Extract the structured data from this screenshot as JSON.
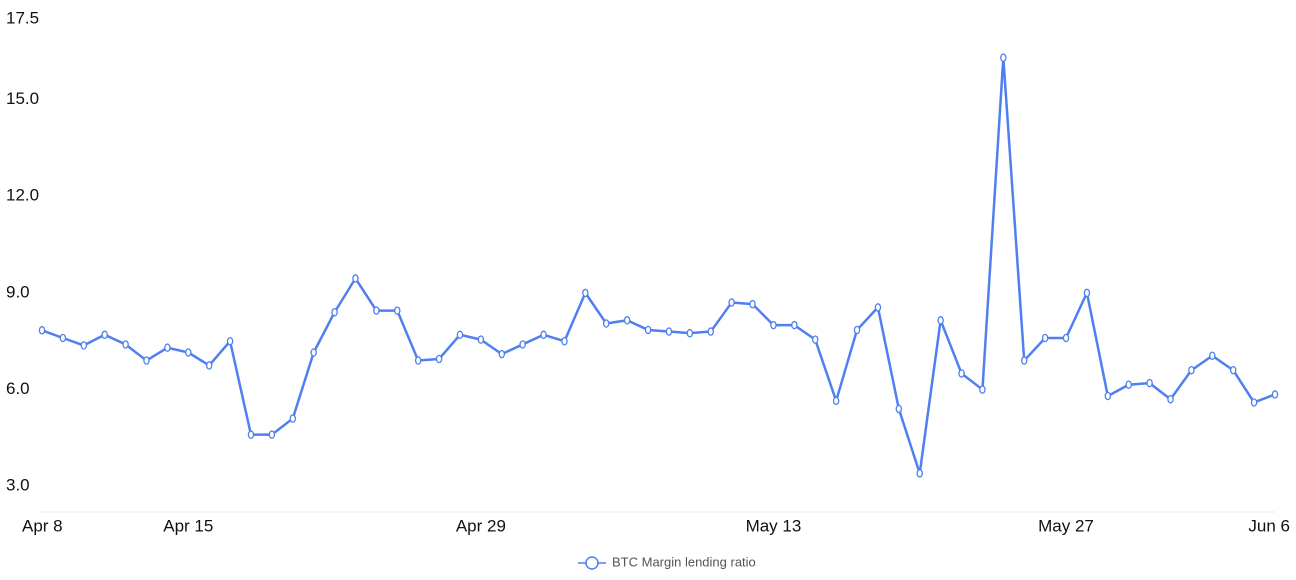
{
  "chart_data": {
    "type": "line",
    "categories": [
      "Apr 8",
      null,
      null,
      null,
      null,
      null,
      null,
      "Apr 15",
      null,
      null,
      null,
      null,
      null,
      null,
      null,
      null,
      null,
      null,
      null,
      null,
      null,
      "Apr 29",
      null,
      null,
      null,
      null,
      null,
      null,
      null,
      null,
      null,
      null,
      null,
      null,
      null,
      "May 13",
      null,
      null,
      null,
      null,
      null,
      null,
      null,
      null,
      null,
      null,
      null,
      null,
      null,
      "May 27",
      null,
      null,
      null,
      null,
      null,
      null,
      null,
      null,
      null,
      "Jun 6"
    ],
    "series": [
      {
        "name": "BTC Margin lending ratio",
        "color": "#4f7ff0",
        "values": [
          7.84,
          7.6,
          7.37,
          7.7,
          7.4,
          6.9,
          7.3,
          7.15,
          6.75,
          7.5,
          4.6,
          4.6,
          5.1,
          7.15,
          8.4,
          9.45,
          8.45,
          8.45,
          6.9,
          6.95,
          7.7,
          7.55,
          7.1,
          7.4,
          7.7,
          7.5,
          9.0,
          8.05,
          8.15,
          7.85,
          7.8,
          7.75,
          7.8,
          8.7,
          8.65,
          8.0,
          8.0,
          7.55,
          5.65,
          7.85,
          8.55,
          5.4,
          3.4,
          8.15,
          6.5,
          6.0,
          16.3,
          6.9,
          7.6,
          7.6,
          9.0,
          5.8,
          6.15,
          6.2,
          5.7,
          6.6,
          7.05,
          6.6,
          5.6,
          5.85
        ]
      }
    ],
    "ylim": [
      2.2,
      17.5
    ],
    "yticks": [
      {
        "value": 3,
        "label": "3.0"
      },
      {
        "value": 6,
        "label": "6.0"
      },
      {
        "value": 9,
        "label": "9.0"
      },
      {
        "value": 12,
        "label": "12.0"
      },
      {
        "value": 15,
        "label": "15.0"
      },
      17.5
    ],
    "grid": false
  }
}
